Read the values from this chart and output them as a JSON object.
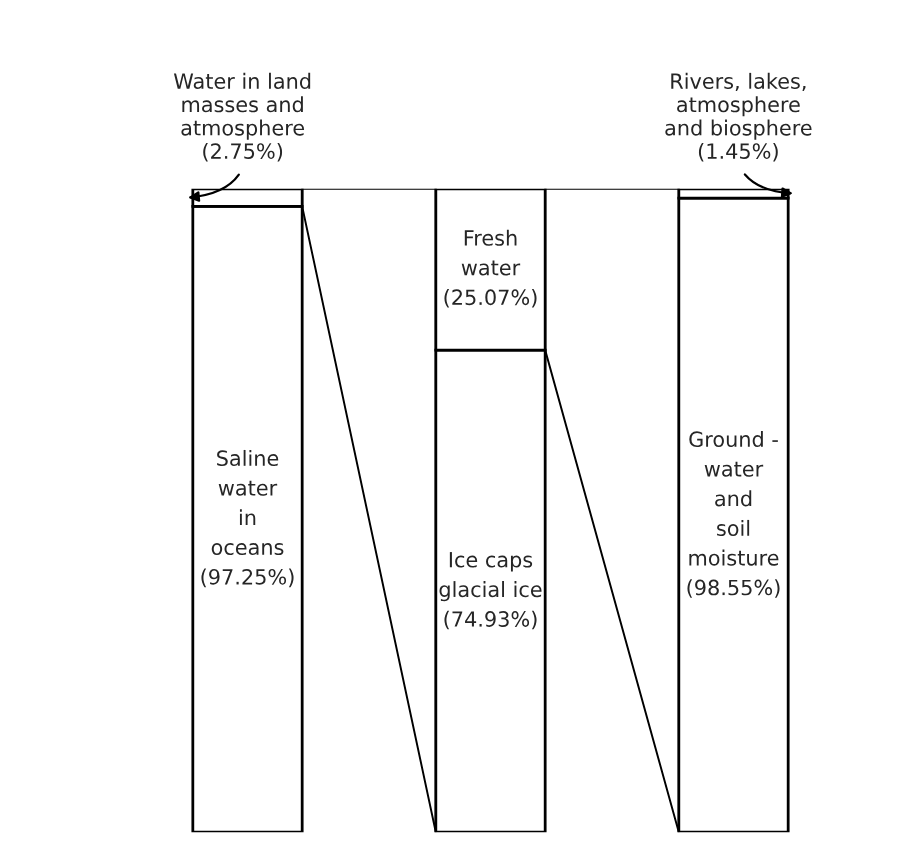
{
  "chart_data": {
    "type": "bar",
    "stacked": true,
    "categories": [
      null,
      null,
      null
    ],
    "series": [
      {
        "color": "#ffffff",
        "values": [
          97.25,
          74.93,
          98.55
        ],
        "value_labels": [
          "Saline\nwater\nin\noceans\n(97.25%)",
          "Ice caps\nglacial ice\n(74.93%)",
          "Ground -\nwater\nand\nsoil\nmoisture\n(98.55%)"
        ]
      },
      {
        "color": "#ffffff",
        "values": [
          2.75,
          25.07,
          1.45
        ],
        "value_labels": [
          "Water in land\nmasses and\natmosphere\n(2.75%)",
          "Fresh\nwater\n(25.07%)",
          "Rivers, lakes,\natmosphere\nand biosphere\n(1.45%)"
        ]
      }
    ]
  }
}
